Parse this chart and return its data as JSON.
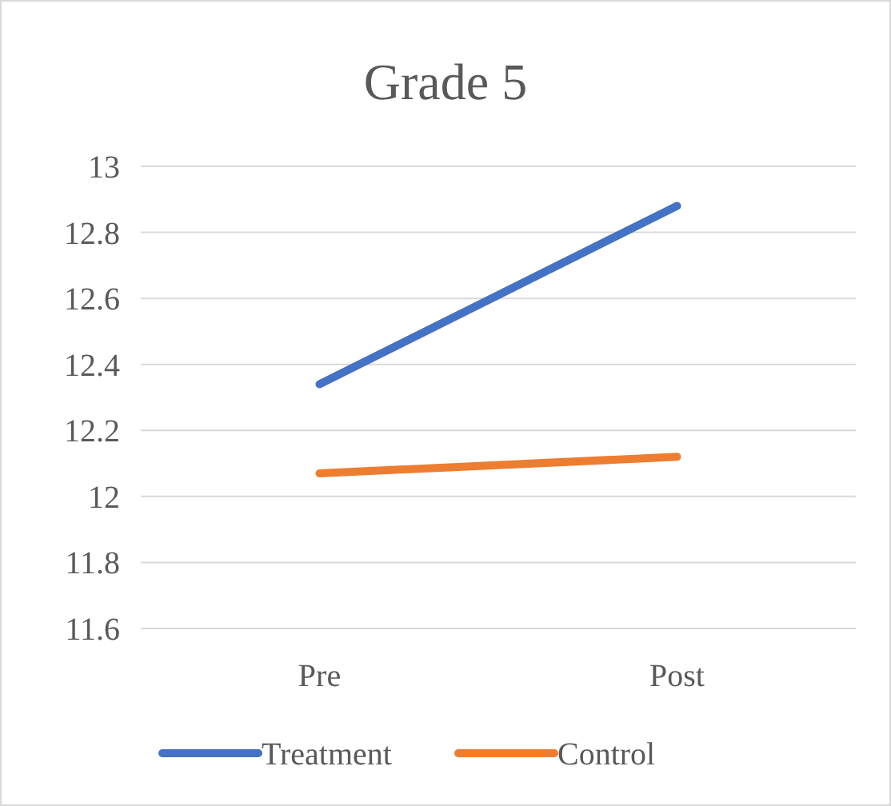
{
  "chart_data": {
    "type": "line",
    "title": "Grade 5",
    "categories": [
      "Pre",
      "Post"
    ],
    "series": [
      {
        "name": "Treatment",
        "color": "#4472c4",
        "values": [
          12.34,
          12.88
        ]
      },
      {
        "name": "Control",
        "color": "#ed7d31",
        "values": [
          12.07,
          12.12
        ]
      }
    ],
    "ylim": [
      11.6,
      13
    ],
    "yticks": [
      11.6,
      11.8,
      12,
      12.2,
      12.4,
      12.6,
      12.8,
      13
    ],
    "grid": "y",
    "legend": "bottom",
    "marker": "none"
  }
}
